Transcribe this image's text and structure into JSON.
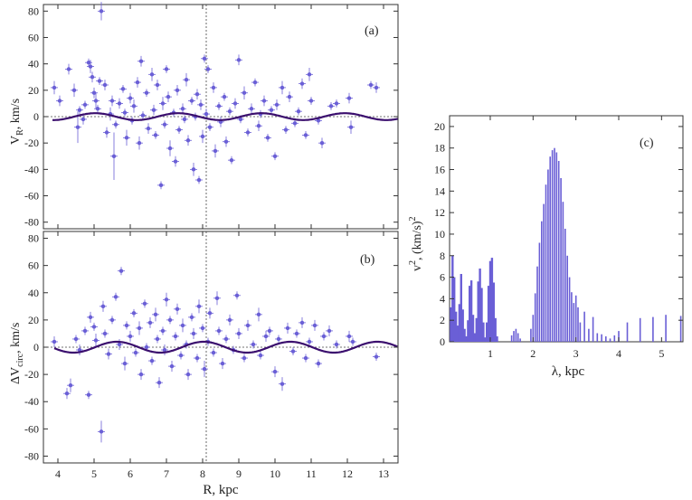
{
  "colors": {
    "points": "#6a5fd6",
    "curve": "#3b0f6e",
    "spectrum": "#6a5fd6",
    "axis": "#333333"
  },
  "chart_data": [
    {
      "id": "a",
      "type": "scatter",
      "panel_label": "(a)",
      "ylabel": "V_R, km/s",
      "ylabel_main": "V",
      "ylabel_sub": "R",
      "ylabel_rest": ", km/s",
      "xlabel": "",
      "xlim": [
        3.6,
        13.4
      ],
      "ylim": [
        -85,
        85
      ],
      "yticks": [
        -80,
        -60,
        -40,
        -20,
        0,
        20,
        40,
        60,
        80
      ],
      "xticks": [
        4,
        5,
        6,
        7,
        8,
        9,
        10,
        11,
        12,
        13
      ],
      "sun_R": 8.1,
      "curve": {
        "amplitude": 2.6,
        "wavelength": 2.3,
        "phase": 0.4,
        "x_range": [
          3.85,
          13.4
        ]
      },
      "points": [
        [
          3.9,
          22,
          5
        ],
        [
          4.05,
          12,
          4
        ],
        [
          4.3,
          36,
          4
        ],
        [
          4.45,
          20,
          5
        ],
        [
          4.55,
          -8,
          12
        ],
        [
          4.6,
          5,
          3
        ],
        [
          4.7,
          -2,
          4
        ],
        [
          4.75,
          9,
          3
        ],
        [
          4.85,
          41,
          3
        ],
        [
          4.9,
          38,
          5
        ],
        [
          4.95,
          30,
          4
        ],
        [
          5.0,
          18,
          4
        ],
        [
          5.05,
          12,
          6
        ],
        [
          5.1,
          6,
          3
        ],
        [
          5.15,
          27,
          3
        ],
        [
          5.2,
          80,
          7
        ],
        [
          5.3,
          24,
          4
        ],
        [
          5.35,
          -12,
          4
        ],
        [
          5.45,
          2,
          5
        ],
        [
          5.5,
          12,
          4
        ],
        [
          5.55,
          -30,
          18
        ],
        [
          5.6,
          -6,
          3
        ],
        [
          5.7,
          10,
          4
        ],
        [
          5.8,
          21,
          3
        ],
        [
          5.85,
          3,
          3
        ],
        [
          5.9,
          -16,
          6
        ],
        [
          6.0,
          14,
          4
        ],
        [
          6.05,
          -3,
          3
        ],
        [
          6.1,
          8,
          5
        ],
        [
          6.2,
          26,
          4
        ],
        [
          6.25,
          -20,
          5
        ],
        [
          6.3,
          42,
          4
        ],
        [
          6.35,
          1,
          3
        ],
        [
          6.45,
          18,
          3
        ],
        [
          6.5,
          -9,
          4
        ],
        [
          6.6,
          32,
          5
        ],
        [
          6.65,
          5,
          4
        ],
        [
          6.7,
          -14,
          3
        ],
        [
          6.75,
          24,
          4
        ],
        [
          6.85,
          -52,
          3
        ],
        [
          6.9,
          10,
          5
        ],
        [
          6.95,
          -6,
          3
        ],
        [
          7.0,
          36,
          3
        ],
        [
          7.05,
          15,
          4
        ],
        [
          7.1,
          -24,
          6
        ],
        [
          7.2,
          3,
          3
        ],
        [
          7.25,
          -34,
          4
        ],
        [
          7.3,
          20,
          4
        ],
        [
          7.35,
          -10,
          3
        ],
        [
          7.45,
          6,
          4
        ],
        [
          7.5,
          -2,
          3
        ],
        [
          7.55,
          28,
          5
        ],
        [
          7.6,
          -18,
          4
        ],
        [
          7.7,
          12,
          3
        ],
        [
          7.75,
          -40,
          5
        ],
        [
          7.8,
          0,
          3
        ],
        [
          7.85,
          17,
          4
        ],
        [
          7.9,
          -48,
          3
        ],
        [
          7.95,
          9,
          4
        ],
        [
          8.0,
          -15,
          5
        ],
        [
          8.05,
          44,
          3
        ],
        [
          8.1,
          2,
          4
        ],
        [
          8.15,
          36,
          3
        ],
        [
          8.2,
          -8,
          3
        ],
        [
          8.3,
          22,
          4
        ],
        [
          8.35,
          -26,
          5
        ],
        [
          8.45,
          8,
          3
        ],
        [
          8.5,
          -4,
          4
        ],
        [
          8.6,
          15,
          3
        ],
        [
          8.65,
          -19,
          4
        ],
        [
          8.75,
          4,
          3
        ],
        [
          8.8,
          -33,
          3
        ],
        [
          8.9,
          10,
          4
        ],
        [
          9.0,
          43,
          4
        ],
        [
          9.05,
          -2,
          3
        ],
        [
          9.15,
          18,
          5
        ],
        [
          9.25,
          -12,
          3
        ],
        [
          9.35,
          6,
          4
        ],
        [
          9.45,
          26,
          3
        ],
        [
          9.55,
          -7,
          4
        ],
        [
          9.6,
          2,
          3
        ],
        [
          9.7,
          12,
          4
        ],
        [
          9.8,
          -16,
          3
        ],
        [
          9.9,
          5,
          3
        ],
        [
          10.0,
          -30,
          3
        ],
        [
          10.05,
          9,
          4
        ],
        [
          10.2,
          22,
          5
        ],
        [
          10.3,
          -10,
          3
        ],
        [
          10.4,
          15,
          4
        ],
        [
          10.55,
          -5,
          3
        ],
        [
          10.65,
          4,
          3
        ],
        [
          10.75,
          25,
          4
        ],
        [
          10.85,
          -14,
          3
        ],
        [
          10.95,
          32,
          5
        ],
        [
          11.0,
          12,
          3
        ],
        [
          11.2,
          -3,
          3
        ],
        [
          11.3,
          -20,
          4
        ],
        [
          11.55,
          8,
          3
        ],
        [
          11.7,
          10,
          3
        ],
        [
          12.05,
          14,
          4
        ],
        [
          12.1,
          -8,
          5
        ],
        [
          12.65,
          24,
          3
        ],
        [
          12.8,
          22,
          4
        ]
      ]
    },
    {
      "id": "b",
      "type": "scatter",
      "panel_label": "(b)",
      "ylabel": "ΔV_circ, km/s",
      "ylabel_main": "ΔV",
      "ylabel_sub": "circ",
      "ylabel_rest": ", km/s",
      "xlabel": "R, kpc",
      "xlim": [
        3.6,
        13.4
      ],
      "ylim": [
        -85,
        85
      ],
      "yticks": [
        -80,
        -60,
        -40,
        -20,
        0,
        20,
        40,
        60,
        80
      ],
      "xticks": [
        4,
        5,
        6,
        7,
        8,
        9,
        10,
        11,
        12,
        13
      ],
      "sun_R": 8.1,
      "curve": {
        "amplitude": 4.0,
        "wavelength": 2.4,
        "phase": -0.6,
        "x_range": [
          3.9,
          13.4
        ]
      },
      "points": [
        [
          3.9,
          4,
          4
        ],
        [
          4.25,
          -34,
          4
        ],
        [
          4.35,
          -28,
          5
        ],
        [
          4.5,
          6,
          3
        ],
        [
          4.6,
          -2,
          4
        ],
        [
          4.75,
          12,
          3
        ],
        [
          4.85,
          -35,
          3
        ],
        [
          4.9,
          22,
          4
        ],
        [
          5.0,
          15,
          3
        ],
        [
          5.05,
          5,
          5
        ],
        [
          5.2,
          -62,
          8
        ],
        [
          5.25,
          30,
          4
        ],
        [
          5.3,
          10,
          3
        ],
        [
          5.4,
          -5,
          4
        ],
        [
          5.5,
          20,
          3
        ],
        [
          5.6,
          37,
          3
        ],
        [
          5.7,
          2,
          4
        ],
        [
          5.75,
          56,
          3
        ],
        [
          5.85,
          -12,
          5
        ],
        [
          5.9,
          16,
          3
        ],
        [
          6.0,
          8,
          4
        ],
        [
          6.1,
          25,
          3
        ],
        [
          6.15,
          -4,
          3
        ],
        [
          6.25,
          14,
          5
        ],
        [
          6.3,
          -20,
          4
        ],
        [
          6.4,
          32,
          3
        ],
        [
          6.45,
          0,
          3
        ],
        [
          6.55,
          18,
          4
        ],
        [
          6.6,
          -10,
          3
        ],
        [
          6.7,
          24,
          5
        ],
        [
          6.75,
          6,
          3
        ],
        [
          6.8,
          -26,
          4
        ],
        [
          6.9,
          12,
          3
        ],
        [
          6.95,
          -2,
          4
        ],
        [
          7.0,
          35,
          5
        ],
        [
          7.1,
          20,
          3
        ],
        [
          7.15,
          -14,
          4
        ],
        [
          7.25,
          8,
          3
        ],
        [
          7.3,
          28,
          4
        ],
        [
          7.4,
          -6,
          3
        ],
        [
          7.45,
          16,
          5
        ],
        [
          7.55,
          2,
          3
        ],
        [
          7.6,
          -20,
          4
        ],
        [
          7.7,
          22,
          3
        ],
        [
          7.75,
          10,
          4
        ],
        [
          7.85,
          -8,
          3
        ],
        [
          7.9,
          30,
          5
        ],
        [
          8.0,
          14,
          3
        ],
        [
          8.05,
          -16,
          6
        ],
        [
          8.15,
          4,
          3
        ],
        [
          8.2,
          25,
          4
        ],
        [
          8.3,
          -4,
          3
        ],
        [
          8.4,
          36,
          5
        ],
        [
          8.45,
          12,
          3
        ],
        [
          8.55,
          -12,
          4
        ],
        [
          8.65,
          6,
          3
        ],
        [
          8.75,
          20,
          4
        ],
        [
          8.85,
          -2,
          3
        ],
        [
          8.95,
          38,
          3
        ],
        [
          9.0,
          10,
          4
        ],
        [
          9.15,
          -8,
          3
        ],
        [
          9.25,
          16,
          4
        ],
        [
          9.4,
          2,
          3
        ],
        [
          9.55,
          24,
          5
        ],
        [
          9.6,
          -6,
          3
        ],
        [
          9.75,
          8,
          4
        ],
        [
          9.85,
          12,
          3
        ],
        [
          10.0,
          -18,
          4
        ],
        [
          10.1,
          6,
          3
        ],
        [
          10.2,
          -27,
          5
        ],
        [
          10.35,
          14,
          4
        ],
        [
          10.5,
          -3,
          3
        ],
        [
          10.6,
          10,
          3
        ],
        [
          10.75,
          18,
          4
        ],
        [
          10.85,
          -8,
          3
        ],
        [
          10.95,
          4,
          3
        ],
        [
          11.1,
          16,
          4
        ],
        [
          11.2,
          -12,
          3
        ],
        [
          11.35,
          8,
          3
        ],
        [
          11.5,
          12,
          4
        ],
        [
          11.7,
          2,
          3
        ],
        [
          12.05,
          8,
          4
        ],
        [
          12.15,
          4,
          3
        ],
        [
          12.8,
          -7,
          3
        ]
      ]
    },
    {
      "id": "c",
      "type": "bar",
      "panel_label": "(c)",
      "ylabel": "v^2, (km/s)^2",
      "ylabel_main": "v",
      "ylabel_sup": "2",
      "ylabel_rest": ", (km/s)",
      "ylabel_sup2": "2",
      "xlabel": "λ, kpc",
      "xlim": [
        0.05,
        5.5
      ],
      "ylim": [
        0,
        21
      ],
      "yticks": [
        0,
        2,
        4,
        6,
        8,
        10,
        12,
        14,
        16,
        18,
        20
      ],
      "xticks": [
        1,
        2,
        3,
        4,
        5
      ],
      "spectrum": [
        [
          0.08,
          3.2
        ],
        [
          0.12,
          8.0
        ],
        [
          0.16,
          6.0
        ],
        [
          0.2,
          2.8
        ],
        [
          0.24,
          1.5
        ],
        [
          0.28,
          3.5
        ],
        [
          0.32,
          6.3
        ],
        [
          0.36,
          3.0
        ],
        [
          0.4,
          1.2
        ],
        [
          0.44,
          0.5
        ],
        [
          0.48,
          2.0
        ],
        [
          0.52,
          5.2
        ],
        [
          0.56,
          5.7
        ],
        [
          0.6,
          2.5
        ],
        [
          0.64,
          0.8
        ],
        [
          0.68,
          2.2
        ],
        [
          0.72,
          5.6
        ],
        [
          0.76,
          6.8
        ],
        [
          0.8,
          5.0
        ],
        [
          0.84,
          1.8
        ],
        [
          0.88,
          0.4
        ],
        [
          0.92,
          1.8
        ],
        [
          0.96,
          5.2
        ],
        [
          1.0,
          7.5
        ],
        [
          1.04,
          7.8
        ],
        [
          1.08,
          5.5
        ],
        [
          1.12,
          2.2
        ],
        [
          1.16,
          0.5
        ],
        [
          1.5,
          0.6
        ],
        [
          1.55,
          1.0
        ],
        [
          1.6,
          1.2
        ],
        [
          1.65,
          0.8
        ],
        [
          1.7,
          0.3
        ],
        [
          1.95,
          1.2
        ],
        [
          2.0,
          2.5
        ],
        [
          2.05,
          4.5
        ],
        [
          2.1,
          7.0
        ],
        [
          2.15,
          9.2
        ],
        [
          2.2,
          11.2
        ],
        [
          2.25,
          12.8
        ],
        [
          2.3,
          14.6
        ],
        [
          2.35,
          16.0
        ],
        [
          2.4,
          17.2
        ],
        [
          2.45,
          17.8
        ],
        [
          2.5,
          18.0
        ],
        [
          2.55,
          17.6
        ],
        [
          2.6,
          16.8
        ],
        [
          2.65,
          15.2
        ],
        [
          2.7,
          13.0
        ],
        [
          2.75,
          10.5
        ],
        [
          2.8,
          8.0
        ],
        [
          2.85,
          6.0
        ],
        [
          2.9,
          4.6
        ],
        [
          2.95,
          3.6
        ],
        [
          3.0,
          4.3
        ],
        [
          3.05,
          3.2
        ],
        [
          3.1,
          1.8
        ],
        [
          3.2,
          2.8
        ],
        [
          3.3,
          1.2
        ],
        [
          3.4,
          2.3
        ],
        [
          3.5,
          0.8
        ],
        [
          3.6,
          0.7
        ],
        [
          3.7,
          0.5
        ],
        [
          3.8,
          0.3
        ],
        [
          3.9,
          0.6
        ],
        [
          4.0,
          1.0
        ],
        [
          4.2,
          1.8
        ],
        [
          4.5,
          2.2
        ],
        [
          4.8,
          2.3
        ],
        [
          5.1,
          2.5
        ],
        [
          5.45,
          2.4
        ]
      ]
    }
  ]
}
